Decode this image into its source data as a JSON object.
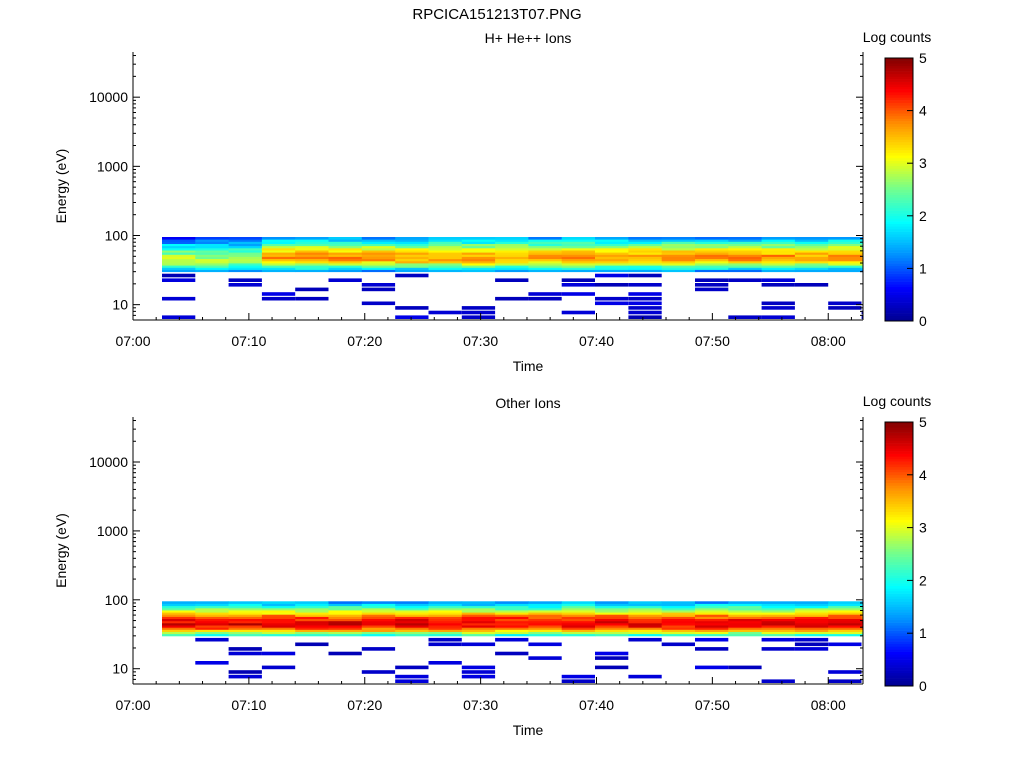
{
  "figure": {
    "title": "RPCICA151213T07.PNG"
  },
  "colors": {
    "background": "#ffffff",
    "axis": "#000000",
    "colormap": [
      "#00008f",
      "#0000ff",
      "#0090ff",
      "#00ffff",
      "#70ff90",
      "#ffff00",
      "#ff9000",
      "#ff0000",
      "#800000"
    ]
  },
  "chart_data": [
    {
      "type": "heatmap",
      "title": "H+ He++ Ions",
      "xlabel": "Time",
      "ylabel": "Energy (eV)",
      "x_ticks": [
        "07:00",
        "07:10",
        "07:20",
        "07:30",
        "07:40",
        "07:50",
        "08:00"
      ],
      "xlim_minutes": [
        0,
        63
      ],
      "data_x_range_minutes": [
        2.5,
        63
      ],
      "y_scale": "log",
      "ylim": [
        6,
        45000
      ],
      "y_ticks": [
        "10",
        "100",
        "1000",
        "10000"
      ],
      "colorbar": {
        "label": "Log counts",
        "ticks": [
          "0",
          "1",
          "2",
          "3",
          "4",
          "5"
        ],
        "range": [
          0,
          5
        ]
      },
      "bands": [
        {
          "energy_range_eV": [
            30,
            95
          ],
          "core_eV": 45,
          "time_range": [
            "07:02",
            "07:12"
          ],
          "peak_log_counts": 2.8
        },
        {
          "energy_range_eV": [
            30,
            95
          ],
          "core_eV": 48,
          "time_range": [
            "07:12",
            "08:03"
          ],
          "peak_log_counts": 3.7
        }
      ],
      "sparse_low_energy_counts": {
        "energy_range_eV": [
          6,
          28
        ],
        "log_counts": 0.2
      }
    },
    {
      "type": "heatmap",
      "title": "Other Ions",
      "xlabel": "Time",
      "ylabel": "Energy (eV)",
      "x_ticks": [
        "07:00",
        "07:10",
        "07:20",
        "07:30",
        "07:40",
        "07:50",
        "08:00"
      ],
      "xlim_minutes": [
        0,
        63
      ],
      "data_x_range_minutes": [
        2.5,
        63
      ],
      "y_scale": "log",
      "ylim": [
        6,
        45000
      ],
      "y_ticks": [
        "10",
        "100",
        "1000",
        "10000"
      ],
      "colorbar": {
        "label": "Log counts",
        "ticks": [
          "0",
          "1",
          "2",
          "3",
          "4",
          "5"
        ],
        "range": [
          0,
          5
        ]
      },
      "bands": [
        {
          "energy_range_eV": [
            30,
            95
          ],
          "core_eV": 45,
          "time_range": [
            "07:02",
            "08:03"
          ],
          "peak_log_counts": 4.5
        }
      ],
      "sparse_low_energy_counts": {
        "energy_range_eV": [
          6,
          28
        ],
        "log_counts": 0.2
      }
    }
  ]
}
